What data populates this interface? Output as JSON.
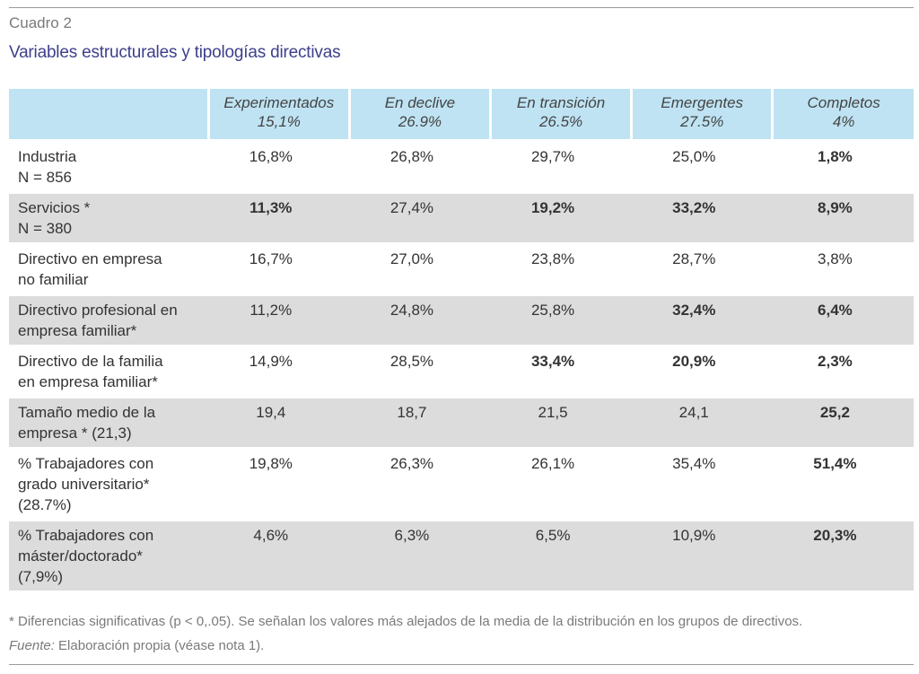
{
  "label": "Cuadro 2",
  "title": "Variables estructurales y tipologías directivas",
  "columns": [
    {
      "name": "Experimentados",
      "pct": "15,1%"
    },
    {
      "name": "En declive",
      "pct": "26.9%"
    },
    {
      "name": "En transición",
      "pct": "26.5%"
    },
    {
      "name": "Emergentes",
      "pct": "27.5%"
    },
    {
      "name": "Completos",
      "pct": "4%"
    }
  ],
  "rows": [
    {
      "label": [
        "Industria",
        "N = 856"
      ],
      "shade": false,
      "values": [
        {
          "v": "16,8%",
          "b": false
        },
        {
          "v": "26,8%",
          "b": false
        },
        {
          "v": "29,7%",
          "b": false
        },
        {
          "v": "25,0%",
          "b": false
        },
        {
          "v": "1,8%",
          "b": true
        }
      ]
    },
    {
      "label": [
        "Servicios *",
        "N = 380"
      ],
      "shade": true,
      "values": [
        {
          "v": "11,3%",
          "b": true
        },
        {
          "v": "27,4%",
          "b": false
        },
        {
          "v": "19,2%",
          "b": true
        },
        {
          "v": "33,2%",
          "b": true
        },
        {
          "v": "8,9%",
          "b": true
        }
      ]
    },
    {
      "label": [
        "Directivo en empresa",
        "no familiar"
      ],
      "shade": false,
      "values": [
        {
          "v": "16,7%",
          "b": false
        },
        {
          "v": "27,0%",
          "b": false
        },
        {
          "v": "23,8%",
          "b": false
        },
        {
          "v": "28,7%",
          "b": false
        },
        {
          "v": "3,8%",
          "b": false
        }
      ]
    },
    {
      "label": [
        "Directivo profesional en",
        "empresa familiar*"
      ],
      "shade": true,
      "values": [
        {
          "v": "11,2%",
          "b": false
        },
        {
          "v": "24,8%",
          "b": false
        },
        {
          "v": "25,8%",
          "b": false
        },
        {
          "v": "32,4%",
          "b": true
        },
        {
          "v": "6,4%",
          "b": true
        }
      ]
    },
    {
      "label": [
        "Directivo de la familia",
        "en empresa familiar*"
      ],
      "shade": false,
      "values": [
        {
          "v": "14,9%",
          "b": false
        },
        {
          "v": "28,5%",
          "b": false
        },
        {
          "v": "33,4%",
          "b": true
        },
        {
          "v": "20,9%",
          "b": true
        },
        {
          "v": "2,3%",
          "b": true
        }
      ]
    },
    {
      "label": [
        "Tamaño medio de la",
        "empresa * (21,3)"
      ],
      "shade": true,
      "values": [
        {
          "v": "19,4",
          "b": false
        },
        {
          "v": "18,7",
          "b": false
        },
        {
          "v": "21,5",
          "b": false
        },
        {
          "v": "24,1",
          "b": false
        },
        {
          "v": "25,2",
          "b": true
        }
      ]
    },
    {
      "label": [
        "% Trabajadores con",
        "grado universitario*",
        "(28.7%)"
      ],
      "shade": false,
      "values": [
        {
          "v": "19,8%",
          "b": false
        },
        {
          "v": "26,3%",
          "b": false
        },
        {
          "v": "26,1%",
          "b": false
        },
        {
          "v": "35,4%",
          "b": false
        },
        {
          "v": "51,4%",
          "b": true
        }
      ]
    },
    {
      "label": [
        "% Trabajadores con",
        "máster/doctorado*",
        "(7,9%)"
      ],
      "shade": true,
      "values": [
        {
          "v": "4,6%",
          "b": false
        },
        {
          "v": "6,3%",
          "b": false
        },
        {
          "v": "6,5%",
          "b": false
        },
        {
          "v": "10,9%",
          "b": false
        },
        {
          "v": "20,3%",
          "b": true
        }
      ]
    }
  ],
  "note": "* Diferencias significativas (p < 0,.05). Se señalan los valores más alejados de la media de la distribución en los grupos de directivos.",
  "source_label": "Fuente:",
  "source_text": " Elaboración propia (véase nota 1)."
}
